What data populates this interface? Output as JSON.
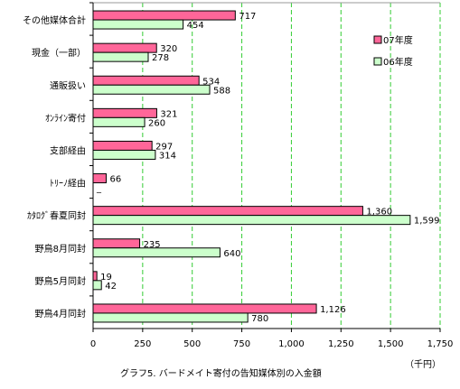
{
  "chart_data": {
    "type": "bar",
    "orientation": "horizontal",
    "title": "グラフ5. バードメイト寄付の告知媒体別の入金額",
    "unit_label": "（千円）",
    "categories": [
      "その他媒体合計",
      "現金（一部）",
      "通販扱い",
      "ｵﾝﾗｲﾝ寄付",
      "支部経由",
      "ﾄﾘｰﾉ経由",
      "ｶﾀﾛｸﾞ春夏同封",
      "野鳥8月同封",
      "野鳥5月同封",
      "野鳥4月同封"
    ],
    "series": [
      {
        "name": "07年度",
        "color": "#ff6699",
        "values": [
          717,
          320,
          534,
          321,
          297,
          66,
          1360,
          235,
          19,
          1126
        ],
        "labels": [
          "717",
          "320",
          "534",
          "321",
          "297",
          "66",
          "1,360",
          "235",
          "19",
          "1,126"
        ]
      },
      {
        "name": "06年度",
        "color": "#ccffcc",
        "values": [
          454,
          278,
          588,
          260,
          314,
          0,
          1599,
          640,
          42,
          780
        ],
        "labels": [
          "454",
          "278",
          "588",
          "260",
          "314",
          "_",
          "1,599",
          "640",
          "42",
          "780"
        ]
      }
    ],
    "xlim": [
      0,
      1750
    ],
    "x_ticks": [
      0,
      250,
      500,
      750,
      1000,
      1250,
      1500,
      1750
    ],
    "x_tick_labels": [
      "0",
      "250",
      "500",
      "750",
      "1,000",
      "1,250",
      "1,500",
      "1,750"
    ],
    "grid": "vertical dashed green",
    "legend_position": "top-right"
  }
}
